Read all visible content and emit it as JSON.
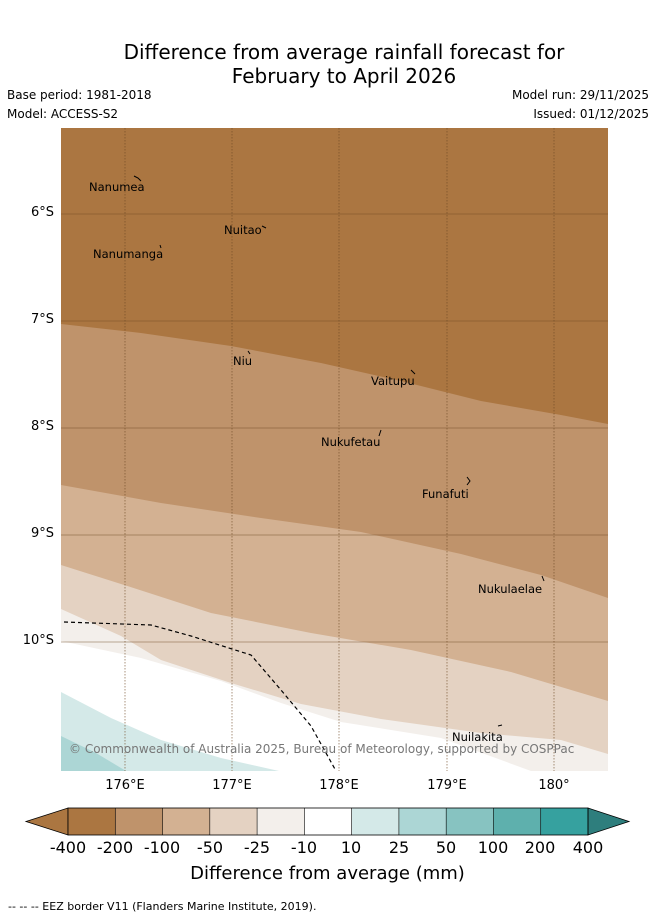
{
  "title": {
    "line1": "Difference from average rainfall forecast for",
    "line2": "February to April 2026"
  },
  "meta": {
    "base_period": "Base period: 1981-2018",
    "model": "Model: ACCESS-S2",
    "model_run": "Model run: 29/11/2025",
    "issued": "Issued: 01/12/2025"
  },
  "map": {
    "lat_labels": [
      "6°S",
      "7°S",
      "8°S",
      "9°S",
      "10°S"
    ],
    "lon_labels": [
      "176°E",
      "177°E",
      "178°E",
      "179°E",
      "180°"
    ],
    "places": [
      "Nanumea",
      "Nuitao",
      "Nanumanga",
      "Niu",
      "Vaitupu",
      "Nukufetau",
      "Funafuti",
      "Nukulaelae",
      "Nuilakita"
    ],
    "copyright": "© Commonwealth of Australia 2025, Bureau of Meteorology, supported by COSPPac"
  },
  "legend": {
    "ticks": [
      "-400",
      "-200",
      "-100",
      "-50",
      "-25",
      "-10",
      "10",
      "25",
      "50",
      "100",
      "200",
      "400"
    ],
    "colors": [
      "#ab7641",
      "#ab7641",
      "#bf936b",
      "#d3b192",
      "#e4d2c2",
      "#f3efeb",
      "#ffffff",
      "#d4e9e8",
      "#acd6d5",
      "#87c3c1",
      "#5eb0ad",
      "#36a19f",
      "#2e7e7d"
    ],
    "label": "Difference from average (mm)"
  },
  "footnote": "--  --  -- EEZ border V11 (Flanders Marine Institute, 2019)."
}
